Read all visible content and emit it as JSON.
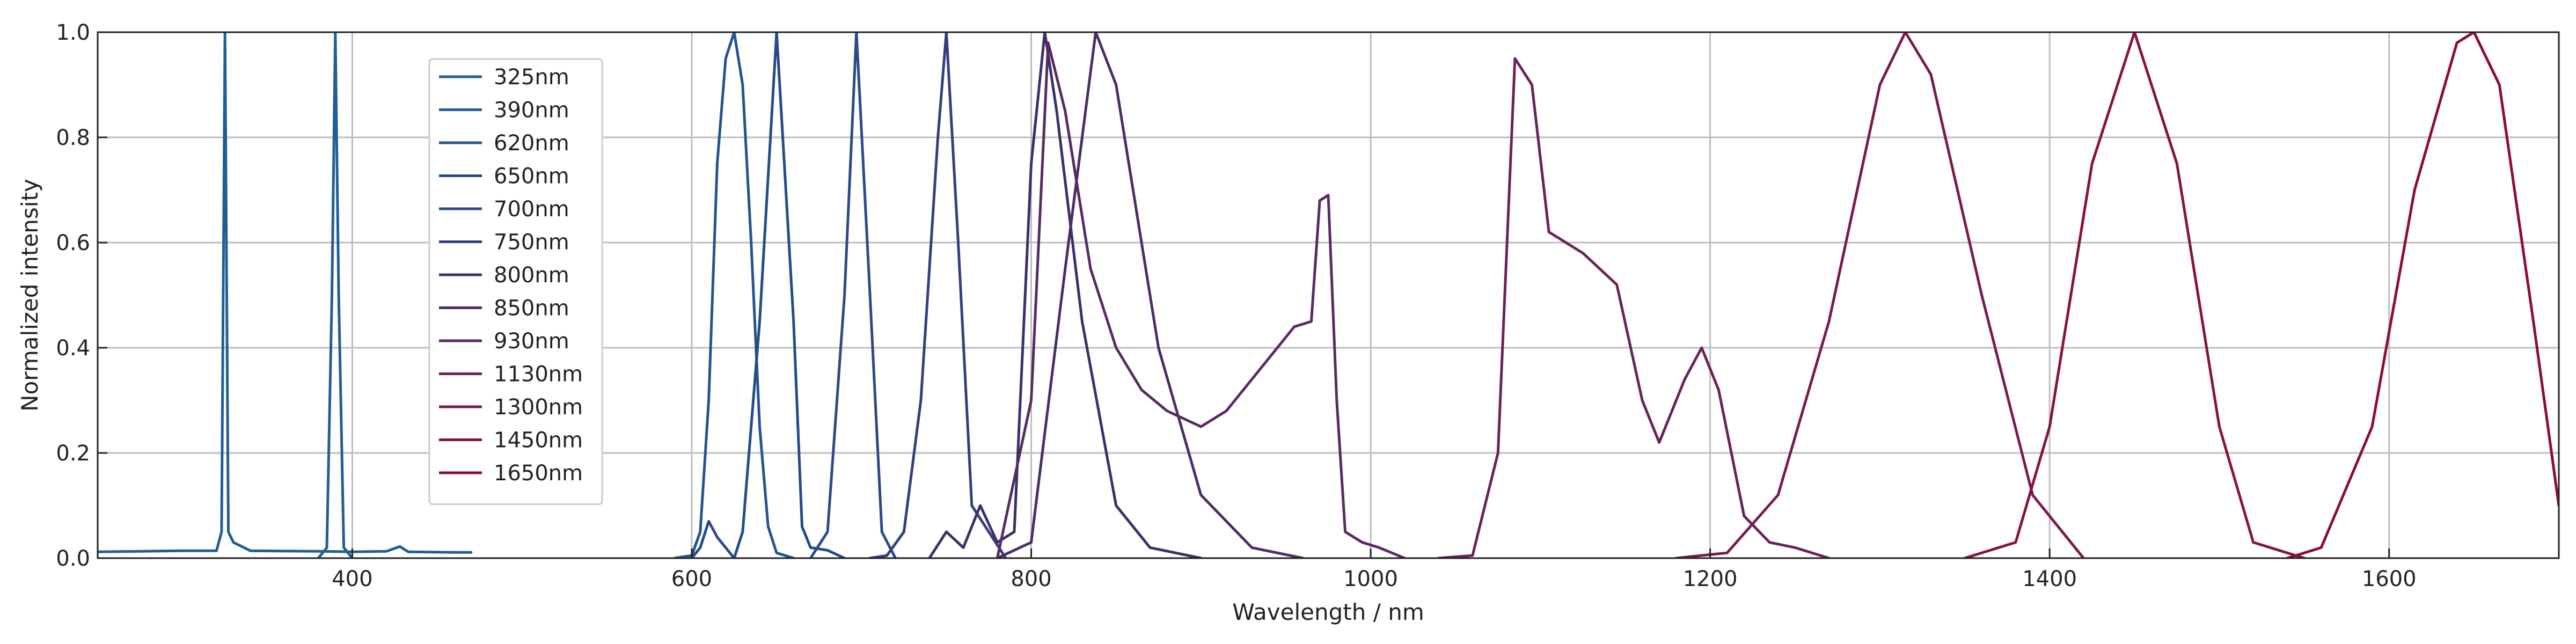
{
  "chart_data": {
    "type": "line",
    "xlabel": "Wavelength / nm",
    "ylabel": "Normalized intensity",
    "xlim": [
      250,
      1700
    ],
    "ylim": [
      0.0,
      1.0
    ],
    "x_ticks": [
      400,
      600,
      800,
      1000,
      1200,
      1400,
      1600
    ],
    "y_ticks": [
      0.0,
      0.2,
      0.4,
      0.6,
      0.8,
      1.0
    ],
    "x_tick_labels": [
      "400",
      "600",
      "800",
      "1000",
      "1200",
      "1400",
      "1600"
    ],
    "y_tick_labels": [
      "0.0",
      "0.2",
      "0.4",
      "0.6",
      "0.8",
      "1.0"
    ],
    "grid": true,
    "legend_position": "upper-left",
    "series": [
      {
        "name": "325nm",
        "color": "#1f5f95",
        "points": [
          [
            250,
            0.012
          ],
          [
            300,
            0.014
          ],
          [
            320,
            0.014
          ],
          [
            323,
            0.05
          ],
          [
            325,
            1.0
          ],
          [
            327,
            0.05
          ],
          [
            330,
            0.03
          ],
          [
            340,
            0.014
          ],
          [
            380,
            0.013
          ],
          [
            400,
            0.012
          ],
          [
            420,
            0.013
          ],
          [
            428,
            0.022
          ],
          [
            433,
            0.012
          ],
          [
            460,
            0.011
          ],
          [
            470,
            0.011
          ]
        ]
      },
      {
        "name": "390nm",
        "color": "#1f5f95",
        "points": [
          [
            380,
            0.0
          ],
          [
            385,
            0.02
          ],
          [
            388,
            0.5
          ],
          [
            390,
            1.0
          ],
          [
            392,
            0.5
          ],
          [
            395,
            0.02
          ],
          [
            400,
            0.0
          ]
        ]
      },
      {
        "name": "620nm",
        "color": "#24548e",
        "points": [
          [
            590,
            0.0
          ],
          [
            600,
            0.005
          ],
          [
            605,
            0.05
          ],
          [
            610,
            0.3
          ],
          [
            615,
            0.75
          ],
          [
            620,
            0.95
          ],
          [
            625,
            1.0
          ],
          [
            630,
            0.9
          ],
          [
            635,
            0.6
          ],
          [
            640,
            0.25
          ],
          [
            645,
            0.06
          ],
          [
            650,
            0.01
          ],
          [
            660,
            0.0
          ]
        ]
      },
      {
        "name": "650nm",
        "color": "#234c88",
        "points": [
          [
            600,
            0.0
          ],
          [
            605,
            0.02
          ],
          [
            610,
            0.07
          ],
          [
            615,
            0.04
          ],
          [
            625,
            0.0
          ],
          [
            630,
            0.05
          ],
          [
            640,
            0.45
          ],
          [
            650,
            1.0
          ],
          [
            660,
            0.45
          ],
          [
            665,
            0.06
          ],
          [
            670,
            0.02
          ],
          [
            680,
            0.015
          ],
          [
            690,
            0.0
          ]
        ]
      },
      {
        "name": "700nm",
        "color": "#2b4a86",
        "points": [
          [
            670,
            0.0
          ],
          [
            680,
            0.05
          ],
          [
            690,
            0.5
          ],
          [
            697,
            1.0
          ],
          [
            705,
            0.5
          ],
          [
            712,
            0.05
          ],
          [
            720,
            0.0
          ]
        ]
      },
      {
        "name": "750nm",
        "color": "#333f7c",
        "points": [
          [
            705,
            0.0
          ],
          [
            715,
            0.005
          ],
          [
            725,
            0.05
          ],
          [
            735,
            0.3
          ],
          [
            745,
            0.8
          ],
          [
            750,
            1.0
          ],
          [
            757,
            0.6
          ],
          [
            765,
            0.1
          ],
          [
            775,
            0.05
          ],
          [
            785,
            0.0
          ]
        ]
      },
      {
        "name": "800nm",
        "color": "#3c2f6a",
        "points": [
          [
            740,
            0.0
          ],
          [
            750,
            0.05
          ],
          [
            760,
            0.02
          ],
          [
            770,
            0.1
          ],
          [
            780,
            0.03
          ],
          [
            790,
            0.05
          ],
          [
            800,
            0.75
          ],
          [
            808,
            1.0
          ],
          [
            815,
            0.85
          ],
          [
            830,
            0.45
          ],
          [
            850,
            0.1
          ],
          [
            870,
            0.02
          ],
          [
            900,
            0.0
          ]
        ]
      },
      {
        "name": "850nm",
        "color": "#4a2d68",
        "points": [
          [
            780,
            0.0
          ],
          [
            800,
            0.03
          ],
          [
            820,
            0.55
          ],
          [
            838,
            1.0
          ],
          [
            850,
            0.9
          ],
          [
            860,
            0.7
          ],
          [
            875,
            0.4
          ],
          [
            900,
            0.12
          ],
          [
            930,
            0.02
          ],
          [
            960,
            0.0
          ]
        ]
      },
      {
        "name": "930nm",
        "color": "#5a2a63",
        "points": [
          [
            780,
            0.0
          ],
          [
            800,
            0.3
          ],
          [
            810,
            0.98
          ],
          [
            820,
            0.85
          ],
          [
            835,
            0.55
          ],
          [
            850,
            0.4
          ],
          [
            865,
            0.32
          ],
          [
            880,
            0.28
          ],
          [
            900,
            0.25
          ],
          [
            915,
            0.28
          ],
          [
            935,
            0.36
          ],
          [
            955,
            0.44
          ],
          [
            965,
            0.45
          ],
          [
            970,
            0.68
          ],
          [
            975,
            0.69
          ],
          [
            980,
            0.3
          ],
          [
            985,
            0.05
          ],
          [
            995,
            0.03
          ],
          [
            1005,
            0.02
          ],
          [
            1020,
            0.0
          ]
        ]
      },
      {
        "name": "1130nm",
        "color": "#6a2258",
        "points": [
          [
            1040,
            0.0
          ],
          [
            1060,
            0.005
          ],
          [
            1075,
            0.2
          ],
          [
            1085,
            0.95
          ],
          [
            1095,
            0.9
          ],
          [
            1105,
            0.62
          ],
          [
            1125,
            0.58
          ],
          [
            1145,
            0.52
          ],
          [
            1160,
            0.3
          ],
          [
            1170,
            0.22
          ],
          [
            1185,
            0.34
          ],
          [
            1195,
            0.4
          ],
          [
            1205,
            0.32
          ],
          [
            1220,
            0.08
          ],
          [
            1235,
            0.03
          ],
          [
            1250,
            0.02
          ],
          [
            1270,
            0.0
          ]
        ]
      },
      {
        "name": "1300nm",
        "color": "#7a1a4c",
        "points": [
          [
            1180,
            0.0
          ],
          [
            1210,
            0.01
          ],
          [
            1240,
            0.12
          ],
          [
            1270,
            0.45
          ],
          [
            1300,
            0.9
          ],
          [
            1315,
            1.0
          ],
          [
            1330,
            0.92
          ],
          [
            1360,
            0.5
          ],
          [
            1390,
            0.12
          ],
          [
            1420,
            0.0
          ]
        ]
      },
      {
        "name": "1450nm",
        "color": "#851244",
        "points": [
          [
            1350,
            0.0
          ],
          [
            1380,
            0.03
          ],
          [
            1400,
            0.25
          ],
          [
            1425,
            0.75
          ],
          [
            1450,
            1.0
          ],
          [
            1475,
            0.75
          ],
          [
            1500,
            0.25
          ],
          [
            1520,
            0.03
          ],
          [
            1550,
            0.0
          ]
        ]
      },
      {
        "name": "1650nm",
        "color": "#8c0b3c",
        "points": [
          [
            1540,
            0.0
          ],
          [
            1560,
            0.02
          ],
          [
            1590,
            0.25
          ],
          [
            1615,
            0.7
          ],
          [
            1640,
            0.98
          ],
          [
            1650,
            1.0
          ],
          [
            1665,
            0.9
          ],
          [
            1685,
            0.45
          ],
          [
            1700,
            0.1
          ]
        ]
      }
    ]
  }
}
